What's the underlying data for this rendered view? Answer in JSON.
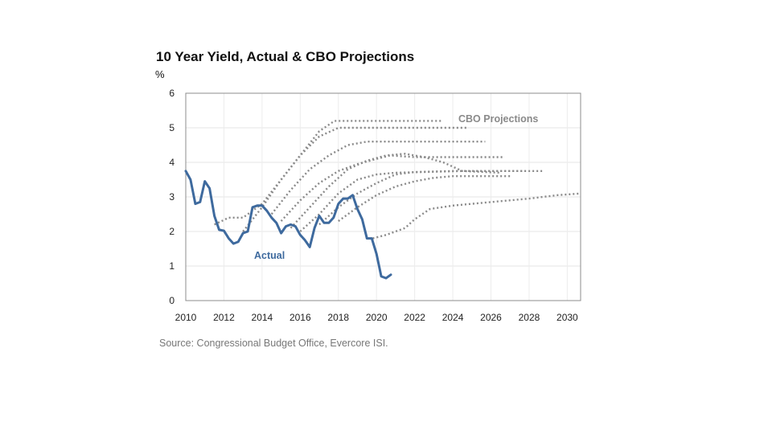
{
  "chart_data": {
    "type": "line",
    "title": "10 Year Yield, Actual & CBO Projections",
    "ylabel": "%",
    "xlabel": "",
    "xlim": [
      2010,
      2030.7
    ],
    "ylim": [
      0,
      6
    ],
    "x_ticks": [
      "2010",
      "2012",
      "2014",
      "2016",
      "2018",
      "2020",
      "2022",
      "2024",
      "2026",
      "2028",
      "2030"
    ],
    "y_ticks": [
      "0",
      "1",
      "2",
      "3",
      "4",
      "5",
      "6"
    ],
    "grid": true,
    "annotations": {
      "projections": "CBO Projections",
      "actual": "Actual"
    },
    "source": "Source: Congressional Budget Office, Evercore ISI.",
    "colors": {
      "actual": "#3e6a9e",
      "projection": "#8a8a8a"
    },
    "series": [
      {
        "name": "Actual",
        "style": "solid",
        "x": [
          2010.0,
          2010.25,
          2010.5,
          2010.75,
          2011.0,
          2011.25,
          2011.5,
          2011.75,
          2012.0,
          2012.25,
          2012.5,
          2012.75,
          2013.0,
          2013.25,
          2013.5,
          2013.75,
          2014.0,
          2014.25,
          2014.5,
          2014.75,
          2015.0,
          2015.25,
          2015.5,
          2015.75,
          2016.0,
          2016.25,
          2016.5,
          2016.75,
          2017.0,
          2017.25,
          2017.5,
          2017.75,
          2018.0,
          2018.25,
          2018.5,
          2018.75,
          2019.0,
          2019.25,
          2019.5,
          2019.75,
          2020.0,
          2020.25,
          2020.5,
          2020.75
        ],
        "y": [
          3.75,
          3.5,
          2.8,
          2.85,
          3.45,
          3.25,
          2.45,
          2.05,
          2.02,
          1.8,
          1.65,
          1.7,
          1.95,
          2.0,
          2.7,
          2.75,
          2.75,
          2.6,
          2.4,
          2.25,
          1.95,
          2.15,
          2.2,
          2.15,
          1.9,
          1.75,
          1.55,
          2.1,
          2.45,
          2.25,
          2.25,
          2.4,
          2.8,
          2.95,
          2.95,
          3.05,
          2.65,
          2.35,
          1.8,
          1.8,
          1.35,
          0.7,
          0.65,
          0.75
        ]
      },
      {
        "name": "",
        "style": "dotted",
        "x": [
          2011.5,
          2012.25,
          2013.0,
          2014.0,
          2015.0,
          2016.0,
          2017.0,
          2017.8,
          2019.0,
          2021.0,
          2023.5
        ],
        "y": [
          2.2,
          2.4,
          2.4,
          2.8,
          3.5,
          4.2,
          4.9,
          5.2,
          5.2,
          5.2,
          5.2
        ]
      },
      {
        "name": "",
        "style": "dotted",
        "x": [
          2013.0,
          2014.0,
          2015.0,
          2016.0,
          2017.0,
          2018.0,
          2020.0,
          2022.0,
          2024.8
        ],
        "y": [
          2.0,
          2.7,
          3.5,
          4.2,
          4.75,
          5.0,
          5.0,
          5.0,
          5.0
        ]
      },
      {
        "name": "",
        "style": "dotted",
        "x": [
          2014.5,
          2015.5,
          2016.5,
          2017.5,
          2018.5,
          2019.5,
          2021.5,
          2023.5,
          2025.7
        ],
        "y": [
          2.5,
          3.2,
          3.8,
          4.2,
          4.5,
          4.6,
          4.6,
          4.6,
          4.6
        ]
      },
      {
        "name": "",
        "style": "dotted",
        "x": [
          2015.0,
          2016.0,
          2017.0,
          2018.0,
          2019.0,
          2020.0,
          2020.7,
          2022.0,
          2024.0,
          2026.7
        ],
        "y": [
          2.3,
          2.9,
          3.4,
          3.75,
          3.95,
          4.1,
          4.2,
          4.15,
          4.15,
          4.15
        ]
      },
      {
        "name": "",
        "style": "dotted",
        "x": [
          2015.5,
          2016.5,
          2017.5,
          2018.5,
          2019.5,
          2020.5,
          2021.5,
          2022.5,
          2023.5,
          2024.5,
          2026.5
        ],
        "y": [
          2.1,
          2.7,
          3.3,
          3.8,
          4.05,
          4.2,
          4.25,
          4.15,
          4.0,
          3.75,
          3.7
        ]
      },
      {
        "name": "",
        "style": "dotted",
        "x": [
          2016.0,
          2017.0,
          2018.0,
          2019.0,
          2020.0,
          2021.0,
          2022.5,
          2024.5,
          2026.5,
          2028.8
        ],
        "y": [
          2.0,
          2.5,
          3.1,
          3.5,
          3.65,
          3.7,
          3.72,
          3.75,
          3.75,
          3.75
        ]
      },
      {
        "name": "",
        "style": "dotted",
        "x": [
          2017.0,
          2018.0,
          2019.0,
          2020.0,
          2021.0,
          2022.0,
          2024.0,
          2026.0,
          2027.8
        ],
        "y": [
          2.2,
          2.7,
          3.1,
          3.4,
          3.65,
          3.72,
          3.75,
          3.75,
          3.75
        ]
      },
      {
        "name": "",
        "style": "dotted",
        "x": [
          2018.0,
          2019.0,
          2020.0,
          2021.0,
          2022.0,
          2023.0,
          2024.0,
          2026.0,
          2027.0
        ],
        "y": [
          2.3,
          2.7,
          3.05,
          3.3,
          3.45,
          3.55,
          3.6,
          3.6,
          3.6
        ]
      },
      {
        "name": "",
        "style": "dotted",
        "x": [
          2019.8,
          2020.5,
          2021.5,
          2022.0,
          2022.8,
          2024.0,
          2026.0,
          2028.0,
          2029.5,
          2030.7
        ],
        "y": [
          1.8,
          1.9,
          2.1,
          2.35,
          2.65,
          2.75,
          2.85,
          2.95,
          3.05,
          3.1
        ]
      }
    ]
  }
}
